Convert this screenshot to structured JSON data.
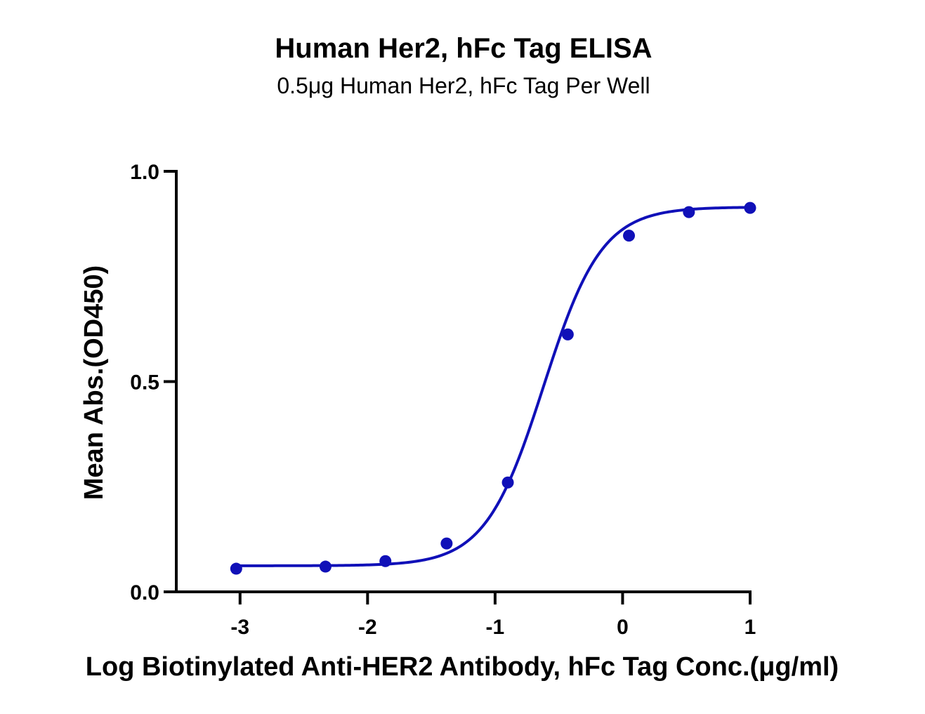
{
  "chart_data": {
    "type": "line",
    "title": "Human Her2, hFc Tag ELISA",
    "subtitle": "0.5μg Human Her2, hFc Tag Per Well",
    "xlabel": "Log Biotinylated Anti-HER2 Antibody, hFc Tag Conc.(μg/ml)",
    "ylabel": "Mean Abs.(OD450)",
    "xlim": [
      -3.5,
      1
    ],
    "ylim": [
      0,
      1
    ],
    "x_ticks": [
      -3,
      -2,
      -1,
      0,
      1
    ],
    "x_tick_labels": [
      "-3",
      "-2",
      "-1",
      "0",
      "1"
    ],
    "y_ticks": [
      0,
      0.5,
      1
    ],
    "y_tick_labels": [
      "0.0",
      "0.5",
      "1.0"
    ],
    "grid": false,
    "series_color": "#1010b8",
    "points": {
      "x": [
        -3.03,
        -2.33,
        -1.86,
        -1.38,
        -0.9,
        -0.43,
        0.05,
        0.52,
        1.0
      ],
      "y": [
        0.055,
        0.06,
        0.073,
        0.115,
        0.26,
        0.612,
        0.847,
        0.903,
        0.913
      ]
    },
    "fit": {
      "model": "4PL",
      "bottom": 0.062,
      "top": 0.915,
      "logEC50": -0.62,
      "hill": 1.9
    }
  }
}
